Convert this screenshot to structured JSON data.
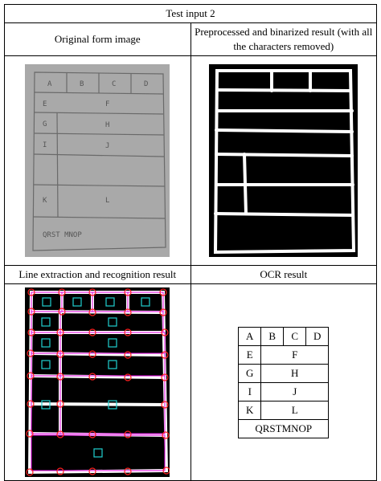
{
  "title": "Test input 2",
  "headers": {
    "original": "Original form image",
    "preprocessed": "Preprocessed and binarized result (with all the characters removed)",
    "line_extraction": "Line extraction and recognition result",
    "ocr": "OCR result"
  },
  "form_labels": [
    "A",
    "B",
    "C",
    "D",
    "E",
    "F",
    "G",
    "H",
    "I",
    "J",
    "K",
    "L",
    "QRST MNOP"
  ],
  "ocr_cells": [
    "A",
    "B",
    "C",
    "D",
    "E",
    "F",
    "G",
    "H",
    "I",
    "J",
    "K",
    "L",
    "QRSTMNOP"
  ],
  "colors": {
    "line_detect": "#e000e0",
    "corner": "#ff2020",
    "cell_marker": "#20d0d0"
  }
}
